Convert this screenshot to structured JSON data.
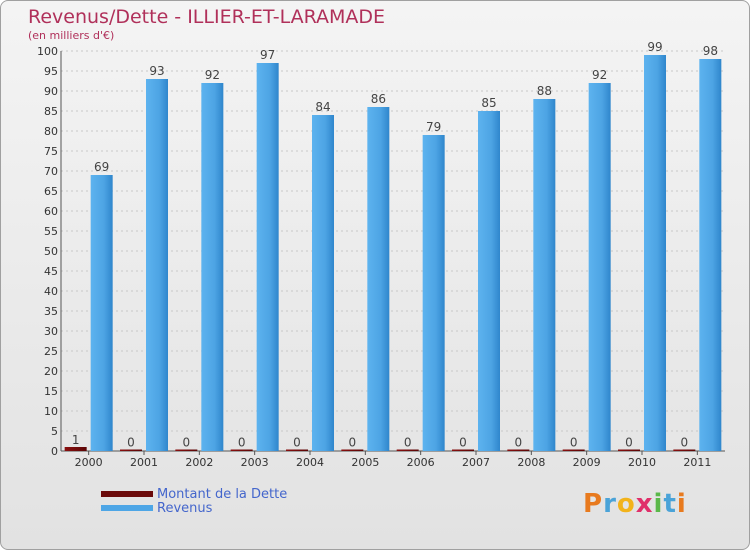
{
  "chart_data": {
    "type": "bar",
    "title": "Revenus/Dette - ILLIER-ET-LARAMADE",
    "subtitle": "(en milliers d'€)",
    "categories": [
      "2000",
      "2001",
      "2002",
      "2003",
      "2004",
      "2005",
      "2006",
      "2007",
      "2008",
      "2009",
      "2010",
      "2011"
    ],
    "series": [
      {
        "name": "Montant de la Dette",
        "color": "#6b0a0a",
        "values": [
          1,
          0,
          0,
          0,
          0,
          0,
          0,
          0,
          0,
          0,
          0,
          0
        ]
      },
      {
        "name": "Revenus",
        "color": "#4ea6e6",
        "values": [
          69,
          93,
          92,
          97,
          84,
          86,
          79,
          85,
          88,
          92,
          99,
          98
        ]
      }
    ],
    "ylim": [
      0,
      100
    ],
    "ytick_step": 5,
    "grid": true,
    "legend_position": "bottom-left"
  },
  "brand": {
    "letters": [
      "P",
      "r",
      "o",
      "x",
      "i",
      "t",
      "i"
    ],
    "colors": [
      "#e87a1e",
      "#4aa3d8",
      "#f2b31b",
      "#e0306a",
      "#5bb84a",
      "#4aa3d8",
      "#e87a1e"
    ]
  }
}
